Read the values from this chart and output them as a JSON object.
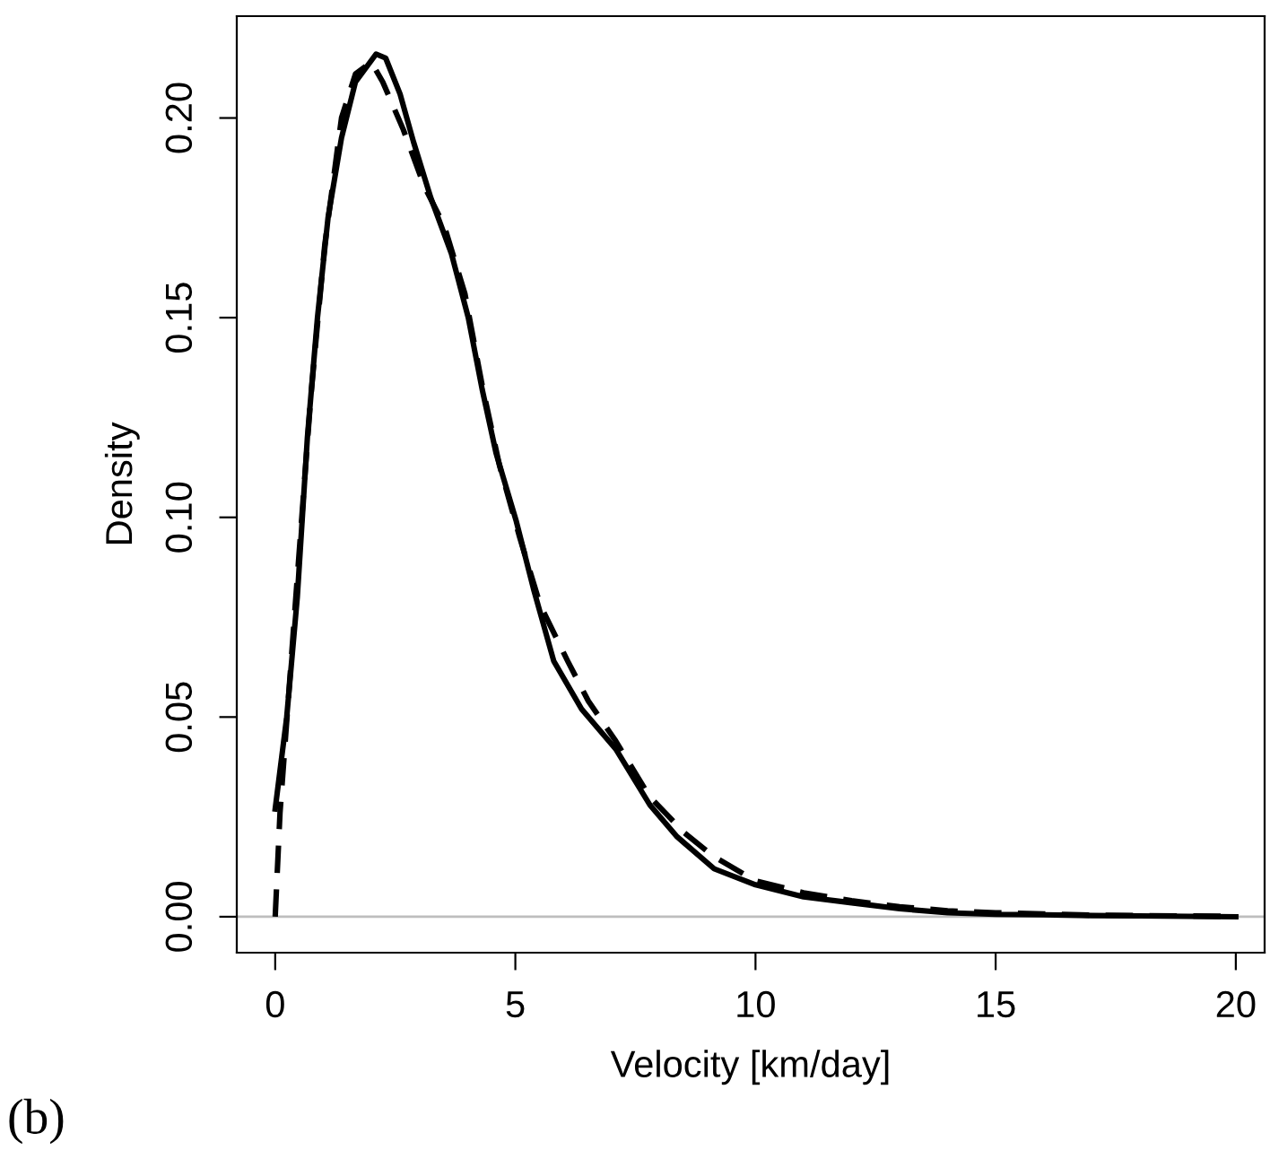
{
  "chart_data": {
    "type": "line",
    "xlabel": "Velocity [km/day]",
    "ylabel": "Density",
    "annotations": [
      "(b)"
    ],
    "xlim": [
      -0.8,
      20.6
    ],
    "ylim": [
      -0.009,
      0.2255
    ],
    "xticks": [
      0,
      5,
      10,
      15,
      20
    ],
    "yticks": [
      {
        "value": 0,
        "label": "0.00"
      },
      {
        "value": 0.05,
        "label": "0.05"
      },
      {
        "value": 0.1,
        "label": "0.10"
      },
      {
        "value": 0.15,
        "label": "0.15"
      },
      {
        "value": 0.2,
        "label": "0.20"
      }
    ],
    "grid": false,
    "legend": false,
    "ref_lines": [
      {
        "axis": "y",
        "value": 0,
        "color": "#bebebe"
      }
    ],
    "series": [
      {
        "color": "#000000",
        "line_style": "solid",
        "x": [
          0,
          0.24,
          0.46,
          0.67,
          0.88,
          1.1,
          1.38,
          1.67,
          2.1,
          2.3,
          2.6,
          2.88,
          3.24,
          3.67,
          4.02,
          4.31,
          4.6,
          5.02,
          5.38,
          5.8,
          6.38,
          7.09,
          7.8,
          8.37,
          9.14,
          10,
          11,
          12,
          13,
          14,
          15,
          16,
          17,
          18,
          20
        ],
        "values": [
          0.027,
          0.05,
          0.08,
          0.12,
          0.15,
          0.175,
          0.195,
          0.209,
          0.216,
          0.215,
          0.206,
          0.194,
          0.18,
          0.166,
          0.15,
          0.132,
          0.116,
          0.099,
          0.082,
          0.064,
          0.052,
          0.042,
          0.028,
          0.02,
          0.012,
          0.008,
          0.005,
          0.0035,
          0.002,
          0.001,
          0.0006,
          0.0005,
          0.0003,
          0.0002,
          0
        ]
      },
      {
        "color": "#000000",
        "line_style": "dashed",
        "x": [
          0,
          0.1,
          0.24,
          0.46,
          0.74,
          1.03,
          1.38,
          1.67,
          2.0,
          2.24,
          2.67,
          3.1,
          3.52,
          3.95,
          4.31,
          4.67,
          5.09,
          5.52,
          6.09,
          6.52,
          7.09,
          7.8,
          8.52,
          9.14,
          10,
          11,
          12,
          13,
          14,
          15,
          16,
          17,
          18,
          20
        ],
        "values": [
          0,
          0.026,
          0.049,
          0.085,
          0.13,
          0.168,
          0.2,
          0.211,
          0.214,
          0.209,
          0.197,
          0.183,
          0.173,
          0.156,
          0.133,
          0.113,
          0.095,
          0.078,
          0.064,
          0.054,
          0.044,
          0.03,
          0.021,
          0.015,
          0.009,
          0.006,
          0.004,
          0.0025,
          0.0015,
          0.001,
          0.0007,
          0.0004,
          0.0003,
          0.0001
        ]
      }
    ]
  }
}
